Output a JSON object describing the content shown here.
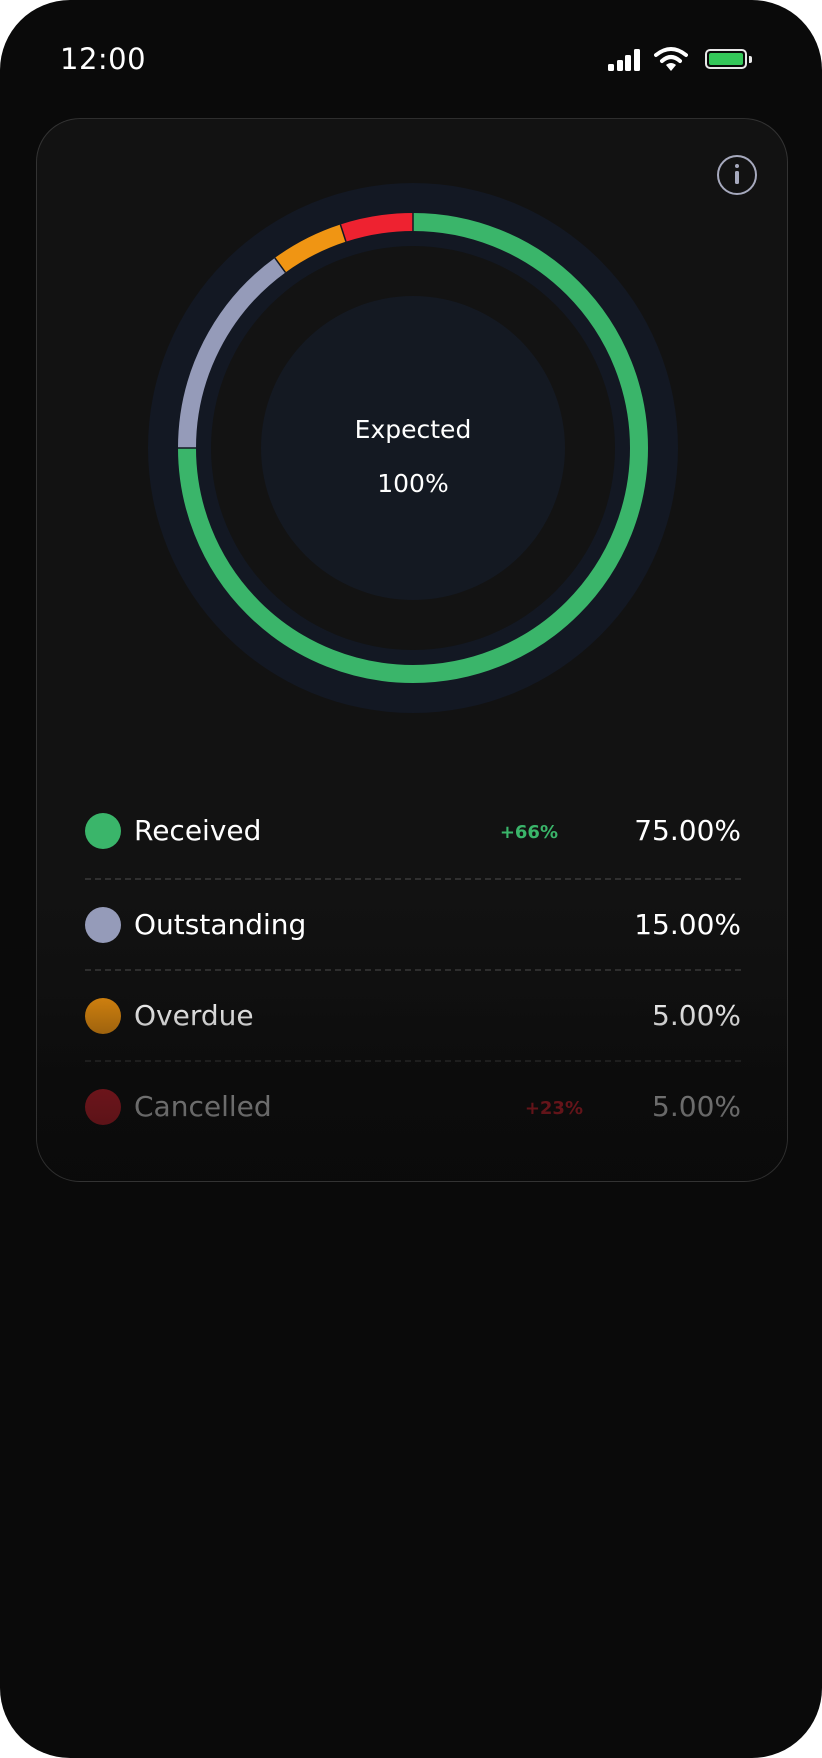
{
  "status_bar": {
    "time": "12:00",
    "icons": [
      "signal-icon",
      "wifi-icon",
      "battery-icon"
    ]
  },
  "info_button": {
    "icon": "info-icon"
  },
  "chart_data": {
    "type": "pie",
    "center_label": "Expected",
    "center_value": "100%",
    "categories": [
      "Received",
      "Outstanding",
      "Overdue",
      "Cancelled"
    ],
    "values": [
      75,
      15,
      5,
      5
    ],
    "colors": [
      "#3ab56a",
      "#959bb9",
      "#f09513",
      "#ee2230"
    ]
  },
  "legend": [
    {
      "label": "Received",
      "change": "+66%",
      "value": "75.00%",
      "color": "#3ab56a",
      "change_color": "#3ab56a"
    },
    {
      "label": "Outstanding",
      "change": "",
      "value": "15.00%",
      "color": "#959bb9",
      "change_color": ""
    },
    {
      "label": "Overdue",
      "change": "",
      "value": "5.00%",
      "color": "#d9860f",
      "change_color": ""
    },
    {
      "label": "Cancelled",
      "change": "+23%",
      "value": "5.00%",
      "color": "#ee2230",
      "change_color": "#ee2230"
    }
  ]
}
